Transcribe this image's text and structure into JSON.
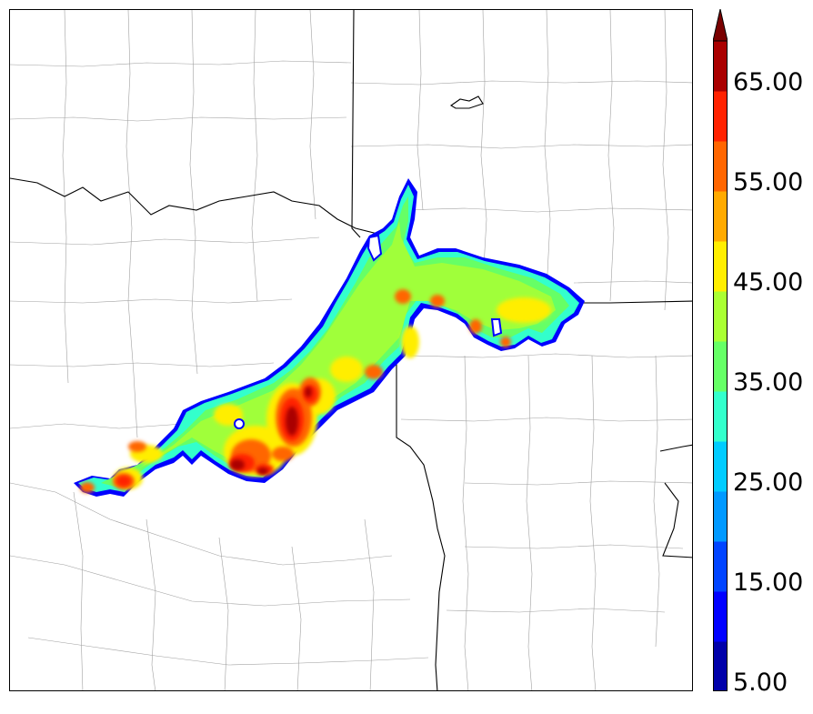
{
  "colorbar": {
    "ticks": [
      "5.00",
      "15.00",
      "25.00",
      "35.00",
      "45.00",
      "55.00",
      "65.00"
    ],
    "levels": [
      5,
      10,
      15,
      20,
      25,
      30,
      35,
      40,
      45,
      50,
      55,
      60,
      65,
      70
    ],
    "colors": [
      "#0000aa",
      "#0000ff",
      "#0044ff",
      "#0099ff",
      "#00ccff",
      "#33ffcc",
      "#66ff66",
      "#aaff33",
      "#ffee00",
      "#ffaa00",
      "#ff6600",
      "#ff2200",
      "#aa0000"
    ],
    "extend_color": "#7a0000"
  },
  "map": {
    "background": "#ffffff",
    "border_color": "#000000",
    "county_line_color": "#999999"
  }
}
